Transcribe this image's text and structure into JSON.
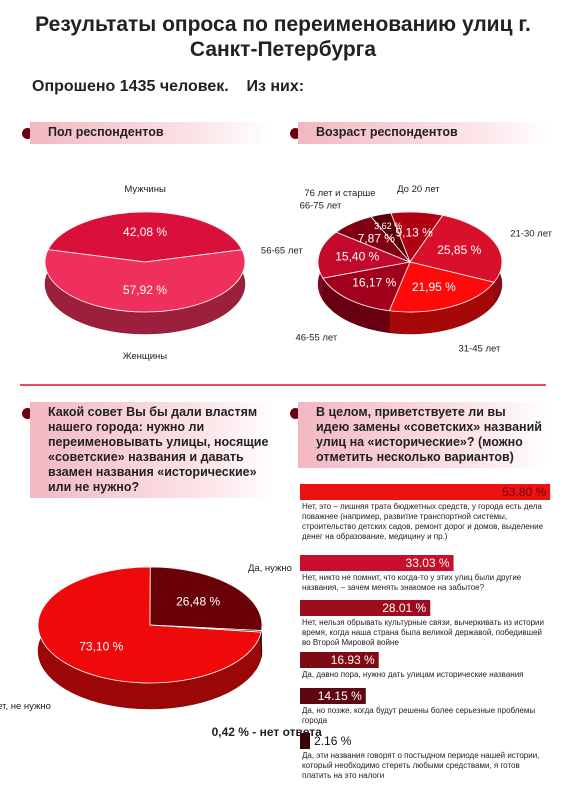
{
  "title": "Результаты опроса по переименованию улиц г. Санкт-Петербурга",
  "subtitle": "Опрошено 1435 человек.    Из них:",
  "chart_data": [
    {
      "type": "pie",
      "title": "Пол респондентов",
      "categories": [
        "Мужчины",
        "Женщины"
      ],
      "values": [
        42.08,
        57.92
      ],
      "value_labels": [
        "42,08 %",
        "57,92 %"
      ],
      "colors": [
        "#d8103a",
        "#f0305c"
      ]
    },
    {
      "type": "pie",
      "title": "Возраст респондентов",
      "categories": [
        "До 20 лет",
        "21-30 лет",
        "31-45 лет",
        "46-55 лет",
        "56-65 лет",
        "66-75 лет",
        "76 лет и старше"
      ],
      "values": [
        9.13,
        25.85,
        21.95,
        16.17,
        15.4,
        7.87,
        3.62
      ],
      "value_labels": [
        "9,13 %",
        "25,85 %",
        "21,95 %",
        "16,17 %",
        "15,40 %",
        "7,87 %",
        "3,62 %"
      ],
      "colors": [
        "#b00012",
        "#d8102a",
        "#ff0a0a",
        "#a0001a",
        "#c40a2c",
        "#800012",
        "#5c0008"
      ]
    },
    {
      "type": "pie",
      "title": "Какой совет Вы бы дали властям нашего города: нужно ли переименовывать улицы, носящие «советские» названия и давать взамен названия «исторические» или не нужно?",
      "categories": [
        "Нет, не нужно",
        "Да, нужно",
        null
      ],
      "values": [
        73.1,
        26.48,
        0.42
      ],
      "value_labels": [
        "73,10 %",
        "26,48 %",
        "0,42 % - нет ответа"
      ],
      "colors": [
        "#ee0a0a",
        "#6a0008",
        "#3a0005"
      ]
    },
    {
      "type": "bar",
      "orientation": "horizontal",
      "title": "В целом, приветствуете ли вы идею замены «советских» названий улиц на «исторические»? (можно отметить несколько вариантов)",
      "categories": [
        "Нет, это – лишняя трата бюджетных средств, у города есть дела поважнее (например, развитие транспортной системы, строительство детских садов, ремонт дорог и домов, выделение денег на образование, медицину и пр.)",
        "Нет, никто не помнит, что когда-то у этих улиц были другие названия, – зачем менять знакомое на забытое?",
        "Нет, нельзя обрывать культурные связи, вычеркивать из истории время, когда наша страна была великой державой, победившей во Второй Мировой войне",
        "Да, давно пора, нужно дать улицам исторические названия",
        "Да, но позже, когда будут решены более серьезные проблемы города",
        "Да, эти названия говорят о постыдном периоде нашей истории, который необходимо стереть любыми средствами, я готов платить на это налоги"
      ],
      "values": [
        53.8,
        33.03,
        28.01,
        16.93,
        14.15,
        2.16
      ],
      "value_labels": [
        "53.80 %",
        "33.03 %",
        "28.01 %",
        "16.93 %",
        "14.15 %",
        "2.16 %"
      ],
      "colors": [
        "#ee1111",
        "#c8102e",
        "#9e0b1e",
        "#800a14",
        "#5e0710",
        "#3a0508"
      ]
    }
  ]
}
